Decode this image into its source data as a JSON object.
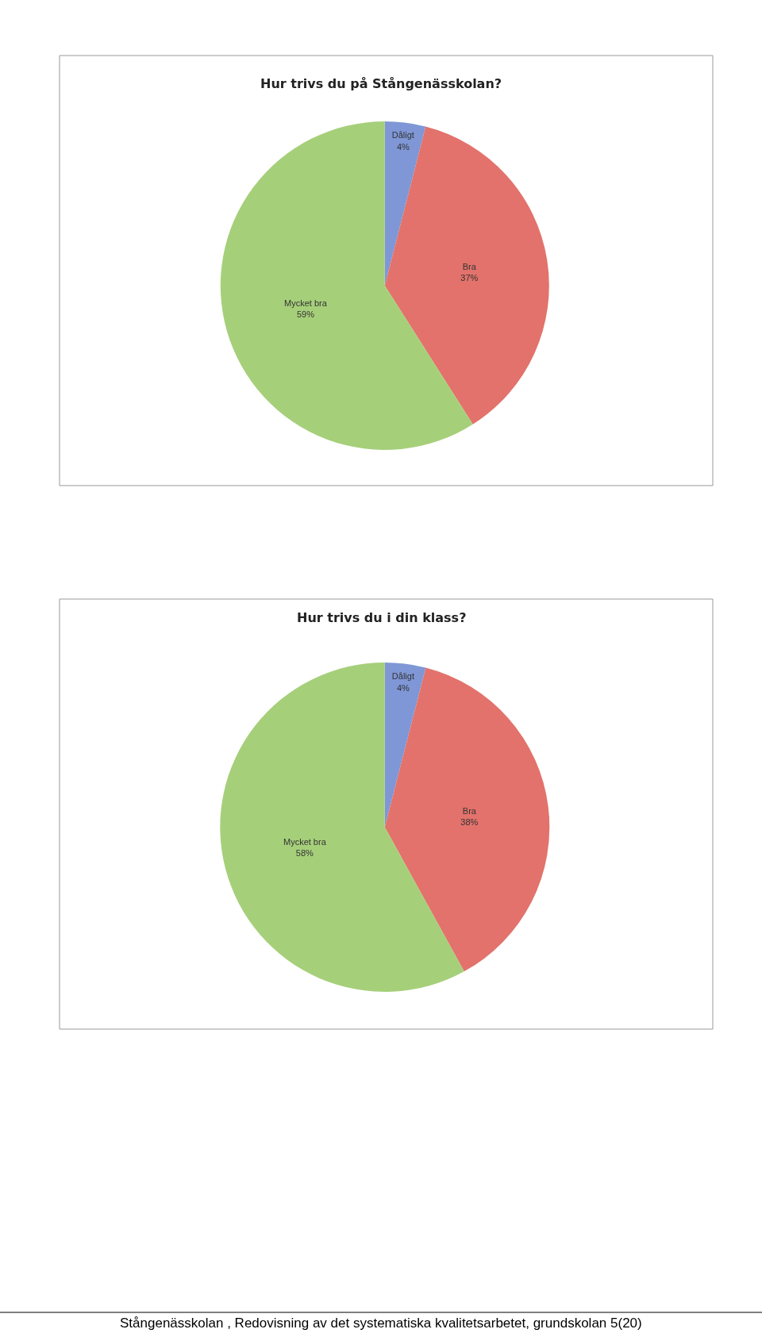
{
  "chart_data": [
    {
      "type": "pie",
      "title": "Hur trivs du på Stångenässkolan?",
      "categories": [
        "Dåligt",
        "Bra",
        "Mycket bra"
      ],
      "values": [
        4,
        37,
        59
      ],
      "value_labels": [
        "4%",
        "37%",
        "59%"
      ],
      "colors": [
        "#7f97d6",
        "#e2726b",
        "#a6cf7a"
      ]
    },
    {
      "type": "pie",
      "title": "Hur trivs du i din klass?",
      "categories": [
        "Dåligt",
        "Bra",
        "Mycket bra"
      ],
      "values": [
        4,
        38,
        58
      ],
      "value_labels": [
        "4%",
        "38%",
        "58%"
      ],
      "colors": [
        "#7f97d6",
        "#e2726b",
        "#a6cf7a"
      ],
      "annotations": [
        "Stångenässkolan , Redovisning av det systematiska kvalitetsarbetet, grundskolan 5(20)"
      ]
    }
  ]
}
